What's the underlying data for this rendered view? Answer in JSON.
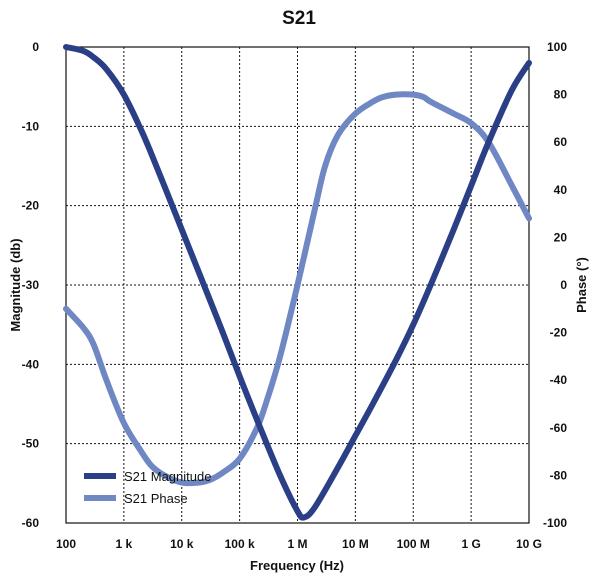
{
  "chart_data": {
    "type": "line",
    "title": "S21",
    "xlabel": "Frequency (Hz)",
    "ylabel": "Magnitude (db)",
    "y2label": "Phase (°)",
    "x_scale": "log",
    "xlim": [
      100,
      10000000000
    ],
    "ylim": [
      -60,
      0
    ],
    "y2lim": [
      -100,
      100
    ],
    "x_ticks": [
      100,
      1000,
      10000,
      100000,
      1000000,
      10000000,
      100000000,
      1000000000,
      10000000000
    ],
    "x_tick_labels": [
      "100",
      "1 k",
      "10 k",
      "100 k",
      "1 M",
      "10 M",
      "100 M",
      "1 G",
      "10 G"
    ],
    "y_ticks": [
      0,
      -10,
      -20,
      -30,
      -40,
      -50,
      -60
    ],
    "y_tick_labels": [
      "0",
      "-10",
      "-20",
      "-30",
      "-40",
      "-50",
      "-60"
    ],
    "y2_ticks": [
      100,
      80,
      60,
      40,
      20,
      0,
      -20,
      -40,
      -60,
      -80,
      -100
    ],
    "y2_tick_labels": [
      "100",
      "80",
      "60",
      "40",
      "20",
      "0",
      "-20",
      "-40",
      "-60",
      "-80",
      "-100"
    ],
    "grid": true,
    "legend_position": "bottom-left",
    "series": [
      {
        "name": "S21 Magnitude",
        "axis": "left",
        "color": "#2b3f86",
        "x": [
          100,
          200,
          300,
          500,
          1000,
          2000,
          3000,
          5000,
          10000,
          20000,
          50000,
          100000,
          200000,
          500000,
          1000000,
          1300000,
          2000000,
          5000000,
          10000000,
          20000000,
          50000000,
          100000000,
          200000000,
          500000000,
          1000000000,
          2000000000,
          5000000000,
          10000000000
        ],
        "y": [
          0,
          -0.5,
          -1.3,
          -2.8,
          -6.0,
          -10.5,
          -13.5,
          -17.5,
          -23.0,
          -28.5,
          -35.8,
          -41.5,
          -47.0,
          -54.0,
          -58.5,
          -59.3,
          -58.0,
          -53.0,
          -49.0,
          -45.0,
          -39.5,
          -35.0,
          -30.0,
          -23.0,
          -17.5,
          -12.0,
          -5.5,
          -2.0
        ]
      },
      {
        "name": "S21 Phase",
        "axis": "right",
        "color": "#6f88c4",
        "x": [
          100,
          200,
          300,
          500,
          1000,
          2000,
          3000,
          5000,
          10000,
          20000,
          30000,
          50000,
          100000,
          200000,
          300000,
          500000,
          1000000,
          2000000,
          3000000,
          5000000,
          10000000,
          20000000,
          30000000,
          50000000,
          100000000,
          150000000,
          200000000,
          500000000,
          1000000000,
          2000000000,
          5000000000,
          10000000000
        ],
        "y": [
          -10,
          -18,
          -25,
          -40,
          -58,
          -70,
          -76,
          -80,
          -83,
          -83,
          -82,
          -79,
          -73,
          -60,
          -48,
          -30,
          0,
          32,
          50,
          63,
          72,
          77,
          79,
          80,
          80,
          79,
          77,
          72,
          68,
          60,
          42,
          28
        ]
      }
    ]
  }
}
